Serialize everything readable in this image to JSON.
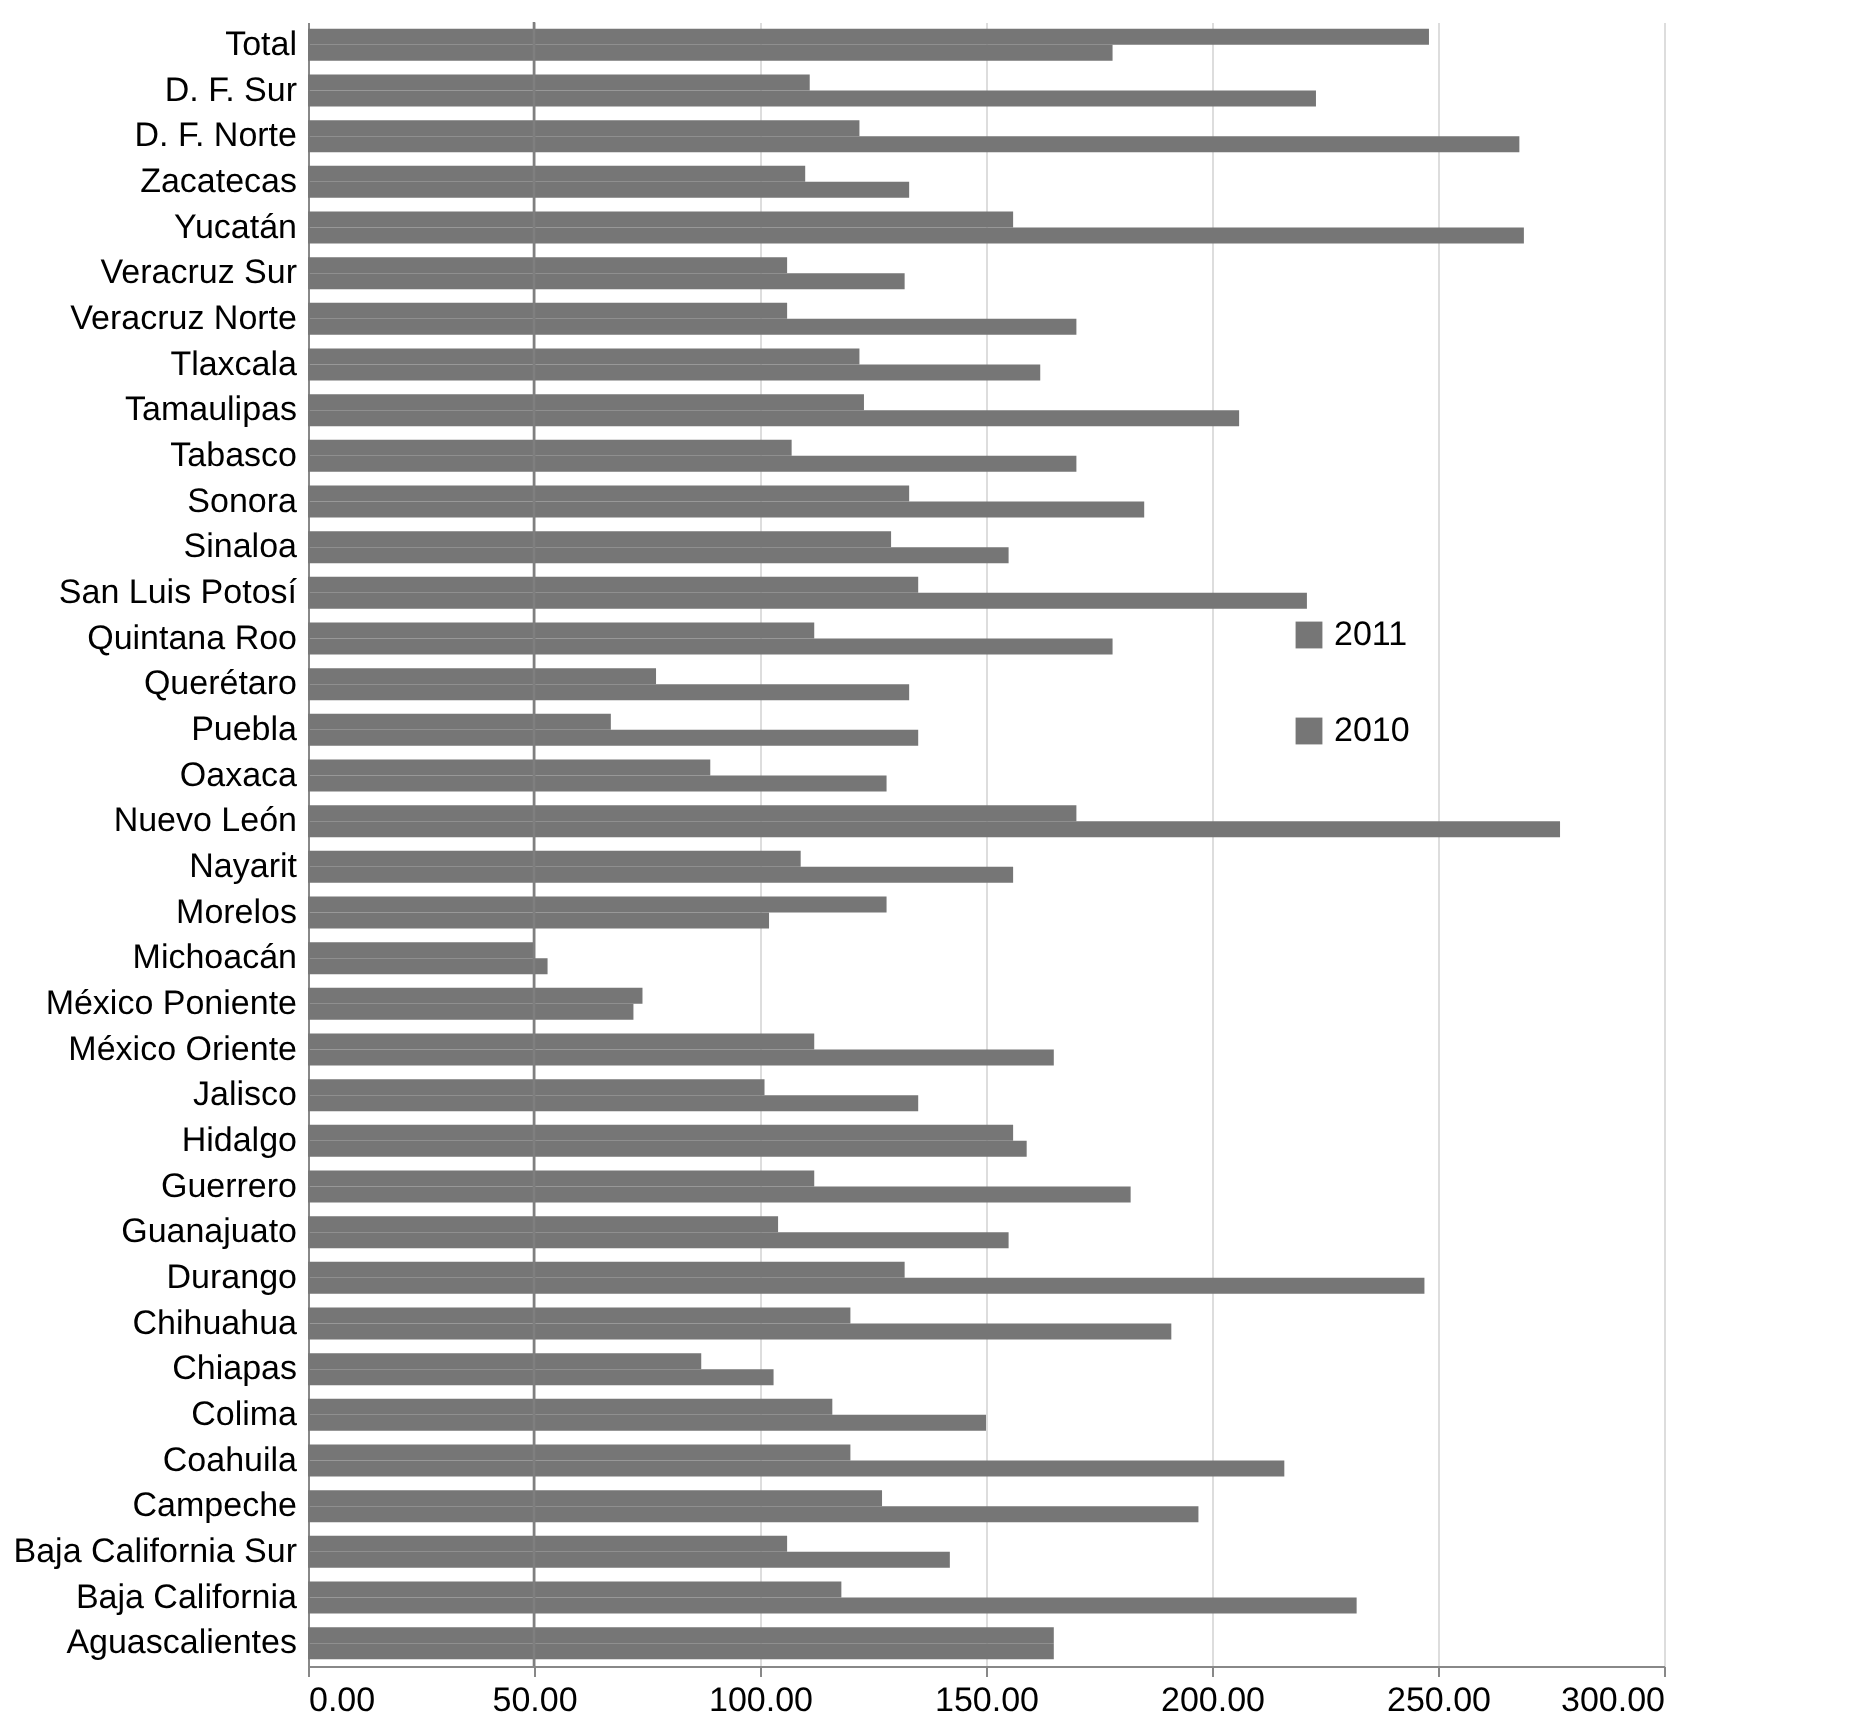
{
  "chart_data": {
    "type": "bar",
    "orientation": "horizontal",
    "categories": [
      "Total",
      "D. F. Sur",
      "D. F. Norte",
      "Zacatecas",
      "Yucatán",
      "Veracruz Sur",
      "Veracruz Norte",
      "Tlaxcala",
      "Tamaulipas",
      "Tabasco",
      "Sonora",
      "Sinaloa",
      "San Luis Potosí",
      "Quintana Roo",
      "Querétaro",
      "Puebla",
      "Oaxaca",
      "Nuevo León",
      "Nayarit",
      "Morelos",
      "Michoacán",
      "México Poniente",
      "México Oriente",
      "Jalisco",
      "Hidalgo",
      "Guerrero",
      "Guanajuato",
      "Durango",
      "Chihuahua",
      "Chiapas",
      "Colima",
      "Coahuila",
      "Campeche",
      "Baja California Sur",
      "Baja California",
      "Aguascalientes"
    ],
    "series": [
      {
        "name": "2011",
        "color": "#767676",
        "values": [
          248,
          111,
          122,
          110,
          156,
          106,
          106,
          122,
          123,
          107,
          133,
          129,
          135,
          112,
          77,
          67,
          89,
          170,
          109,
          128,
          50,
          74,
          112,
          101,
          156,
          112,
          104,
          132,
          120,
          87,
          116,
          120,
          127,
          106,
          118,
          165
        ]
      },
      {
        "name": "2010",
        "color": "#767676",
        "values": [
          178,
          223,
          268,
          133,
          269,
          132,
          170,
          162,
          206,
          170,
          185,
          155,
          221,
          178,
          133,
          135,
          128,
          277,
          156,
          102,
          53,
          72,
          165,
          135,
          159,
          182,
          155,
          247,
          191,
          103,
          150,
          216,
          197,
          142,
          232,
          165
        ]
      }
    ],
    "xlim": [
      0,
      300
    ],
    "xticks": [
      {
        "value": 0,
        "label": "0.00"
      },
      {
        "value": 50,
        "label": "50.00"
      },
      {
        "value": 100,
        "label": "100.00"
      },
      {
        "value": 150,
        "label": "150.00"
      },
      {
        "value": 200,
        "label": "200.00"
      },
      {
        "value": 250,
        "label": "250.00"
      },
      {
        "value": 300,
        "label": "300.00"
      }
    ],
    "grid": "x",
    "legend": "right",
    "ref_lines": [
      {
        "axis": "x",
        "value": 50,
        "color": "#7f7f7f"
      }
    ]
  }
}
